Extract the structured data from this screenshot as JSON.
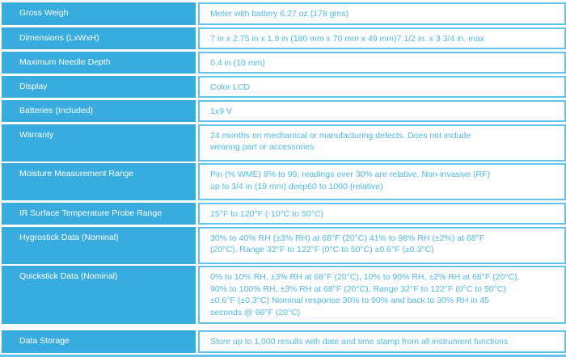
{
  "table": {
    "rows": [
      {
        "label": "Gross Weigh",
        "value": "Meter with battery 6.27 oz (178 gms)"
      },
      {
        "label": "Dimensions (LxWxH)",
        "value": "7 in x 2.75 in x 1.9 in (180 mm x 70 mm x 49 mm)7 1/2 in. x 3 3/4 in. max"
      },
      {
        "label": "Maximum Needle Depth",
        "value": "0.4 in (10 mm)"
      },
      {
        "label": "Display",
        "value": "Color LCD"
      },
      {
        "label": "Batteries (Included)",
        "value": "1x9 V"
      },
      {
        "label": "Warranty",
        "value": "24 months on mechanical or manufacturing defects. Does not include\nwearing part or accessories"
      },
      {
        "label": "Moisture Measurement Range",
        "value": "Pin (% WME) 8% to 99, readings over 30% are relative. Non-invasive (RF)\nup to 3/4 in (19 mm) deep60 to 1000 (relative)"
      },
      {
        "label": "IR Surface Temperature Probe Range",
        "value": "15°F to 120°F (-10°C to 50°C)"
      },
      {
        "label": "Hygrostick Data (Nominal)",
        "value": "30% to 40% RH (±3% RH) at 68°F (20°C) 41% to 98% RH (±2%) at 68°F\n(20°C). Range 32°F to 122°F (0°C to 50°C) ±0.6°F (±0.3°C)"
      },
      {
        "label": "Quickstick Data (Nominal)",
        "value": "0% to 10% RH, ±3% RH at 68°F (20°C), 10% to 90% RH, ±2% RH at 68°F (20°C),\n90% to 100% RH, ±3% RH at 68°F (20°C), Range 32°F to 122°F (0°C to 50°C)\n±0.6°F (±0.3°C) Nominal response 30% to 90% and back to 30% RH in 45\nseconds @ 68°F (20°C)"
      },
      {
        "label": "Data Storage",
        "value": "Store up to 1,000 results with date and time stamp from all instrument functions"
      }
    ],
    "colors": {
      "label_bg": "#38ACDF",
      "label_text": "#FFFFFF",
      "value_text": "#4FB9E7",
      "cell_border": "#62C4EC",
      "background": "#FFFFFF"
    }
  }
}
